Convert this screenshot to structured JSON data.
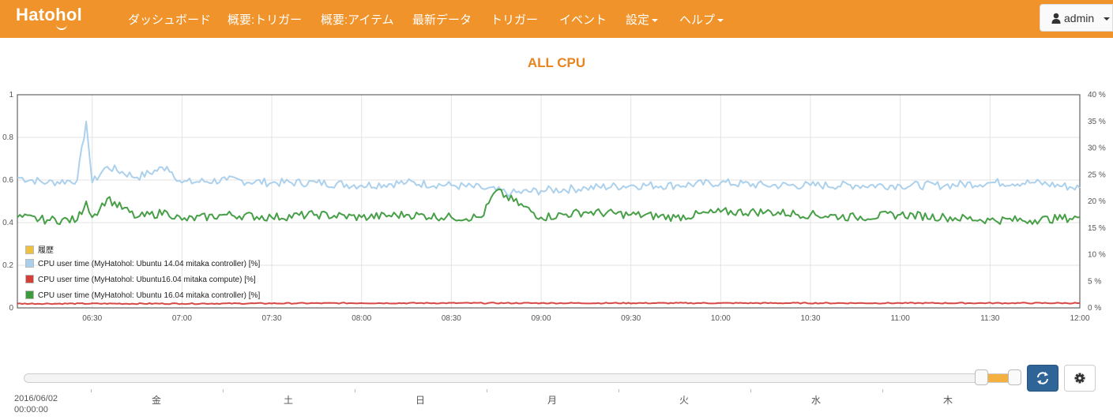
{
  "navbar": {
    "brand": "Hatohol",
    "items": [
      {
        "label": "ダッシュボード",
        "dropdown": false
      },
      {
        "label": "概要:トリガー",
        "dropdown": false
      },
      {
        "label": "概要:アイテム",
        "dropdown": false
      },
      {
        "label": "最新データ",
        "dropdown": false
      },
      {
        "label": "トリガー",
        "dropdown": false
      },
      {
        "label": "イベント",
        "dropdown": false
      },
      {
        "label": "設定",
        "dropdown": true
      },
      {
        "label": "ヘルプ",
        "dropdown": true
      }
    ],
    "user": {
      "label": "admin",
      "icon": "user-icon"
    }
  },
  "page": {
    "title": "ALL CPU"
  },
  "colors": {
    "navbar": "#f0932a",
    "title": "#e8841e",
    "series_light_blue": "#a8cfec",
    "series_red": "#d43f3a",
    "series_green": "#3d9a3d",
    "history_swatch": "#edc240",
    "slider_range": "#f5b042",
    "refresh_button": "#2f6496"
  },
  "legend": [
    {
      "label": "履歴",
      "color": "#edc240"
    },
    {
      "label": "CPU user time (MyHatohol: Ubuntu 14.04 mitaka controller) [%]",
      "color": "#a8cfec"
    },
    {
      "label": "CPU user time (MyHatohol: Ubuntu16.04 mitaka compute) [%]",
      "color": "#d43f3a"
    },
    {
      "label": "CPU user time (MyHatohol: Ubuntu 16.04 mitaka controller) [%]",
      "color": "#3d9a3d"
    }
  ],
  "chart_data": {
    "type": "line",
    "title": "ALL CPU",
    "x_range": [
      "06:05",
      "12:00"
    ],
    "x_ticks": [
      "06:30",
      "07:00",
      "07:30",
      "08:00",
      "08:30",
      "09:00",
      "09:30",
      "10:00",
      "10:30",
      "11:00",
      "11:30",
      "12:00"
    ],
    "y_left": {
      "range": [
        0,
        1
      ],
      "ticks": [
        "0",
        "0.2",
        "0.4",
        "0.6",
        "0.8",
        "1"
      ]
    },
    "y_right": {
      "range": [
        0,
        40
      ],
      "unit": "%",
      "ticks": [
        "0 %",
        "5 %",
        "10 %",
        "15 %",
        "20 %",
        "25 %",
        "30 %",
        "35 %",
        "40 %"
      ]
    },
    "grid": true,
    "legend_position": "bottom-left",
    "series": [
      {
        "name": "CPU user time (MyHatohol: Ubuntu 14.04 mitaka controller) [%]",
        "axis": "right",
        "color": "#a8cfec",
        "x": [
          "06:05",
          "06:15",
          "06:25",
          "06:28",
          "06:30",
          "06:35",
          "06:45",
          "06:55",
          "07:00",
          "07:15",
          "07:30",
          "07:45",
          "08:00",
          "08:15",
          "08:30",
          "08:40",
          "08:50",
          "09:00",
          "09:15",
          "09:30",
          "09:45",
          "10:00",
          "10:15",
          "10:30",
          "10:45",
          "11:00",
          "11:15",
          "11:30",
          "11:45",
          "12:00"
        ],
        "values": [
          24.5,
          23.5,
          24,
          35,
          23.5,
          26.5,
          24.5,
          26.5,
          23.5,
          24,
          23.5,
          23.5,
          23,
          23.5,
          23,
          22.5,
          21.5,
          22,
          22.5,
          23,
          23,
          23.5,
          23,
          23,
          23,
          23,
          23,
          23.5,
          23.5,
          22.5
        ]
      },
      {
        "name": "CPU user time (MyHatohol: Ubuntu16.04 mitaka compute) [%]",
        "axis": "right",
        "color": "#d43f3a",
        "x": [
          "06:05",
          "07:00",
          "08:00",
          "09:00",
          "10:00",
          "11:00",
          "12:00"
        ],
        "values": [
          0.8,
          0.8,
          0.9,
          0.9,
          0.9,
          0.9,
          0.9
        ]
      },
      {
        "name": "CPU user time (MyHatohol: Ubuntu 16.04 mitaka controller) [%]",
        "axis": "right",
        "color": "#3d9a3d",
        "x": [
          "06:05",
          "06:15",
          "06:25",
          "06:28",
          "06:30",
          "06:35",
          "06:45",
          "06:55",
          "07:00",
          "07:15",
          "07:30",
          "07:45",
          "08:00",
          "08:15",
          "08:30",
          "08:40",
          "08:45",
          "09:00",
          "09:15",
          "09:30",
          "09:45",
          "10:00",
          "10:15",
          "10:30",
          "10:45",
          "11:00",
          "11:15",
          "11:30",
          "11:45",
          "12:00"
        ],
        "values": [
          17,
          16.5,
          16.5,
          20,
          17,
          20.5,
          17,
          18,
          16.5,
          17.5,
          17,
          17.5,
          17,
          17.5,
          17,
          17,
          22,
          17,
          18,
          17.5,
          17,
          18,
          18,
          17.5,
          17,
          17.5,
          17,
          16.5,
          16.5,
          17
        ]
      }
    ]
  },
  "timeline": {
    "start_date": "2016/06/02",
    "start_time": "00:00:00",
    "day_labels": [
      "金",
      "土",
      "日",
      "月",
      "火",
      "水",
      "木"
    ]
  },
  "controls": {
    "refresh_icon": "refresh-icon",
    "settings_icon": "gear-icon"
  }
}
